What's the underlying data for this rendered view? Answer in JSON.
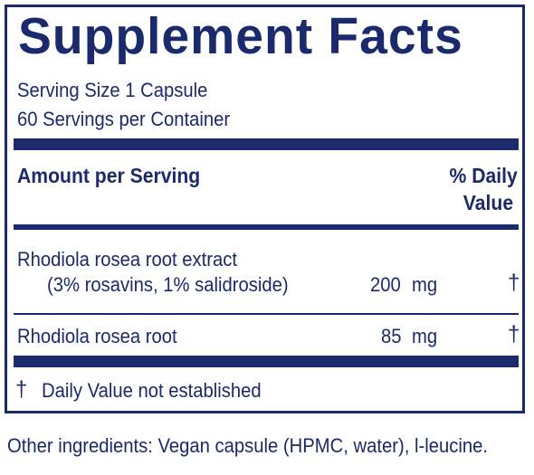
{
  "label": {
    "title": "Supplement Facts",
    "serving_size": "Serving Size 1 Capsule",
    "servings_per_container": "60 Servings per Container",
    "header_amount": "Amount per Serving",
    "header_dv_line1": "% Daily",
    "header_dv_line2": "Value",
    "rows": [
      {
        "name": "Rhodiola rosea root extract",
        "subname": "(3% rosavins, 1% salidroside)",
        "amount": "200",
        "unit": "mg",
        "dv": "†"
      },
      {
        "name": "Rhodiola rosea root",
        "amount": "85",
        "unit": "mg",
        "dv": "†"
      }
    ],
    "footnote_symbol": "†",
    "footnote_text": "Daily Value not established"
  },
  "other_ingredients": "Other ingredients: Vegan capsule (HPMC, water), l-leucine.",
  "colors": {
    "navy": "#1a2a6c",
    "background": "#ffffff"
  }
}
